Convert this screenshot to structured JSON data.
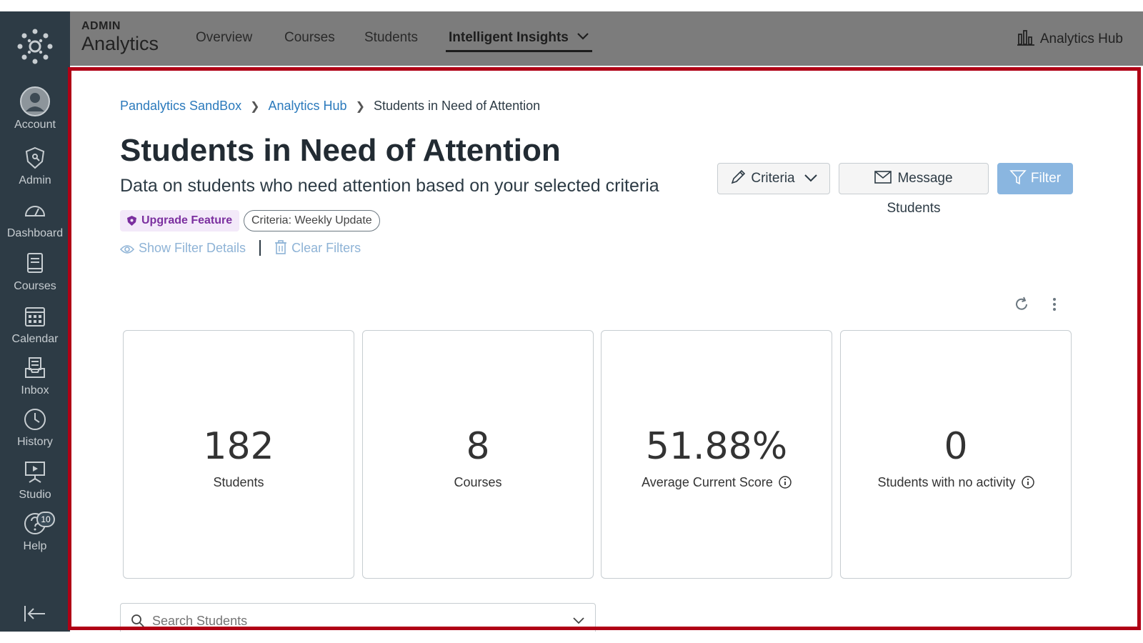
{
  "global_nav": {
    "items": [
      {
        "label": "Account",
        "icon": "account-icon"
      },
      {
        "label": "Admin",
        "icon": "admin-shield-icon"
      },
      {
        "label": "Dashboard",
        "icon": "dashboard-icon"
      },
      {
        "label": "Courses",
        "icon": "courses-book-icon"
      },
      {
        "label": "Calendar",
        "icon": "calendar-icon"
      },
      {
        "label": "Inbox",
        "icon": "inbox-icon"
      },
      {
        "label": "History",
        "icon": "history-clock-icon"
      },
      {
        "label": "Studio",
        "icon": "studio-icon"
      },
      {
        "label": "Help",
        "icon": "help-icon"
      }
    ],
    "help_badge": "10"
  },
  "topbar": {
    "brand_small": "ADMIN",
    "brand_big": "Analytics",
    "nav": [
      "Overview",
      "Courses",
      "Students",
      "Intelligent Insights"
    ],
    "right_link": "Analytics Hub"
  },
  "breadcrumb": [
    "Pandalytics SandBox",
    "Analytics Hub",
    "Students in Need of Attention"
  ],
  "page": {
    "title": "Students in Need of Attention",
    "subtitle": "Data on students who need attention based on your selected criteria"
  },
  "tags": {
    "upgrade": "Upgrade Feature",
    "criteria": "Criteria: Weekly Update"
  },
  "filter_links": {
    "show": "Show Filter Details",
    "clear": "Clear Filters"
  },
  "buttons": {
    "criteria": "Criteria",
    "message": "Message Students",
    "filter": "Filter"
  },
  "cards": [
    {
      "value": "182",
      "label": "Students"
    },
    {
      "value": "8",
      "label": "Courses"
    },
    {
      "value": "51.88%",
      "label": "Average Current Score"
    },
    {
      "value": "0",
      "label": "Students with no activity"
    }
  ],
  "search": {
    "placeholder": "Search Students"
  },
  "colors": {
    "nav_bg": "#2d3b45",
    "link": "#2b7abc",
    "highlight_border": "#b00015",
    "filter_button": "#8ab6e0",
    "upgrade_tag_text": "#7b2f9f"
  }
}
